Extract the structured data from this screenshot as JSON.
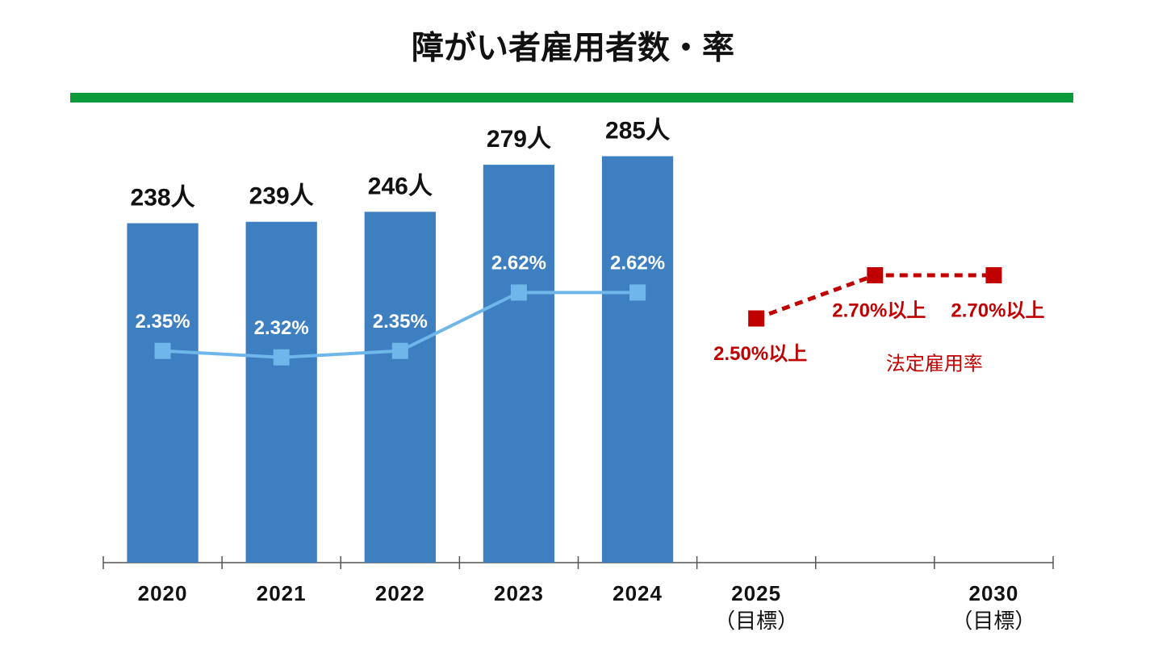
{
  "chart_data": {
    "type": "bar",
    "title": "障がい者雇用者数・率",
    "categories": [
      [
        "2020"
      ],
      [
        "2021"
      ],
      [
        "2022"
      ],
      [
        "2023"
      ],
      [
        "2024"
      ],
      [
        "2025",
        "（目標）"
      ],
      null,
      [
        "2030",
        "（目標）"
      ]
    ],
    "ylim": [
      0,
      300
    ],
    "y2lim": [
      1.37,
      3.35
    ],
    "series": [
      {
        "type": "bar",
        "color": "#3d7fc1",
        "values": [
          238,
          239,
          246,
          279,
          285,
          null,
          null,
          null
        ],
        "value_labels": [
          "238人",
          "239人",
          "246人",
          "279人",
          "285人",
          null,
          null,
          null
        ]
      },
      {
        "type": "line",
        "axis": "y2",
        "color": "#6fb6ea",
        "values": [
          2.35,
          2.32,
          2.35,
          2.62,
          2.62,
          null,
          null,
          null
        ],
        "value_labels": [
          "2.35%",
          "2.32%",
          "2.35%",
          "2.62%",
          "2.62%",
          null,
          null,
          null
        ]
      },
      {
        "type": "line",
        "axis": "y2",
        "name": "法定雇用率",
        "color": "#c00000",
        "dashed": true,
        "values": [
          null,
          null,
          null,
          null,
          null,
          2.5,
          2.7,
          2.7
        ],
        "value_labels": [
          null,
          null,
          null,
          null,
          null,
          "2.50%以上",
          "2.70%以上",
          "2.70%以上"
        ]
      }
    ]
  }
}
